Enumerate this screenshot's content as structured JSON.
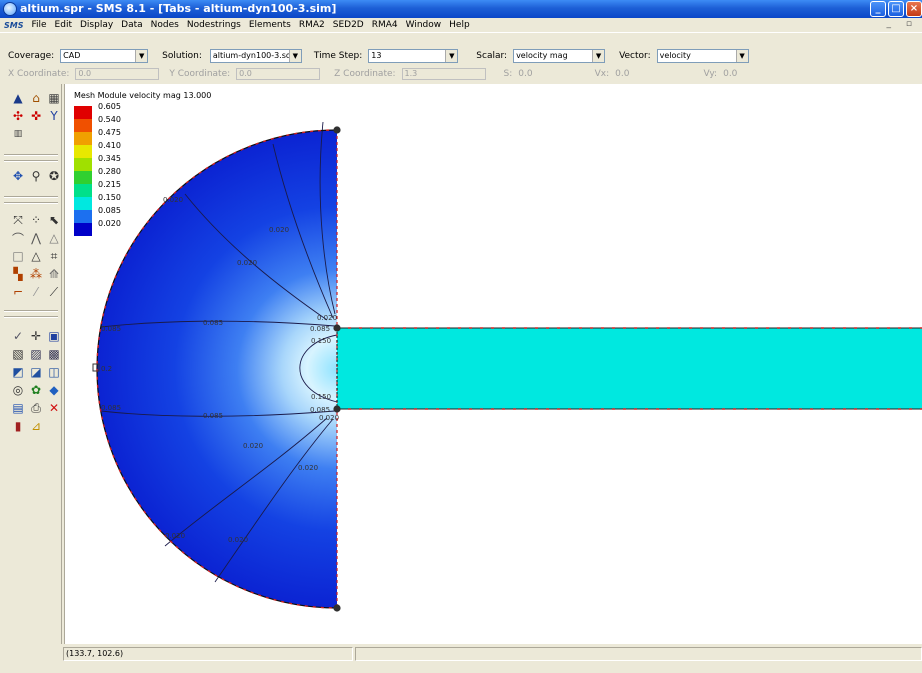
{
  "window": {
    "title": "altium.spr - SMS 8.1 - [Tabs - altium-dyn100-3.sim]"
  },
  "menu": {
    "logo": "SMS",
    "items": [
      "File",
      "Edit",
      "Display",
      "Data",
      "Nodes",
      "Nodestrings",
      "Elements",
      "RMA2",
      "SED2D",
      "RMA4",
      "Window",
      "Help"
    ],
    "mdi_controls": "_ ▫"
  },
  "toolbar": {
    "coverage_label": "Coverage:",
    "coverage_value": "CAD",
    "solution_label": "Solution:",
    "solution_value": "altium-dyn100-3.sol",
    "timestep_label": "Time Step:",
    "timestep_value": "13",
    "scalar_label": "Scalar:",
    "scalar_value": "velocity mag",
    "vector_label": "Vector:",
    "vector_value": "velocity"
  },
  "coords": {
    "x_label": "X Coordinate:",
    "x_value": "0.0",
    "y_label": "Y Coordinate:",
    "y_value": "0.0",
    "z_label": "Z Coordinate:",
    "z_value": "1.3",
    "s_label": "S:",
    "s_value": "0.0",
    "vx_label": "Vx:",
    "vx_value": "0.0",
    "vy_label": "Vy:",
    "vy_value": "0.0"
  },
  "legend": {
    "title": "Mesh Module velocity mag  13.000",
    "entries": [
      {
        "value": "0.605",
        "color": "#e00000"
      },
      {
        "value": "0.540",
        "color": "#f05000"
      },
      {
        "value": "0.475",
        "color": "#f0a000"
      },
      {
        "value": "0.410",
        "color": "#e8e800"
      },
      {
        "value": "0.345",
        "color": "#a0e000"
      },
      {
        "value": "0.280",
        "color": "#30d030"
      },
      {
        "value": "0.215",
        "color": "#00e08a"
      },
      {
        "value": "0.150",
        "color": "#00e8e0"
      },
      {
        "value": "0.085",
        "color": "#1c70f0"
      },
      {
        "value": "0.020",
        "color": "#0000c8"
      }
    ]
  },
  "contour_labels": {
    "c1": "0.020",
    "c2": "0.020",
    "c3": "0.020",
    "c4": "0.085",
    "c5": "0.085",
    "c6": "0.085",
    "c7": "0.085",
    "c8": "0.150",
    "c9": "0.150",
    "c10": "0.085",
    "c11": "0.085",
    "c12": "0.020",
    "c13": "0.020",
    "c14": "0.020",
    "c15": "0.020",
    "c16": "0.2",
    "c17": "0.020",
    "c18": "0.020"
  },
  "status": {
    "coordinates": "(133.7, 102.6)"
  },
  "colors": {
    "channel": "#00e8e0",
    "boundary": "#d02020",
    "titlebar": "#0a46c8"
  }
}
